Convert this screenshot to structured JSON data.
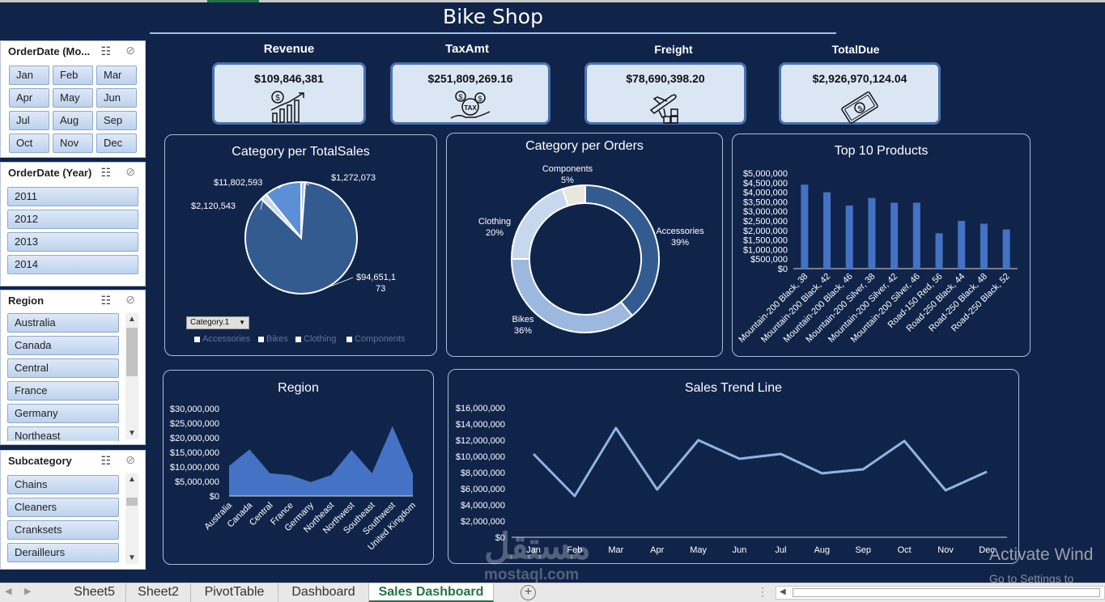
{
  "dashboard": {
    "title": "Bike Shop"
  },
  "slicers": {
    "month": {
      "title": "OrderDate (Mo...",
      "items": [
        "Jan",
        "Feb",
        "Mar",
        "Apr",
        "May",
        "Jun",
        "Jul",
        "Aug",
        "Sep",
        "Oct",
        "Nov",
        "Dec"
      ]
    },
    "year": {
      "title": "OrderDate (Year)",
      "items": [
        "2011",
        "2012",
        "2013",
        "2014"
      ]
    },
    "region": {
      "title": "Region",
      "items": [
        "Australia",
        "Canada",
        "Central",
        "France",
        "Germany",
        "Northeast"
      ]
    },
    "subcategory": {
      "title": "Subcategory",
      "items": [
        "Chains",
        "Cleaners",
        "Cranksets",
        "Derailleurs"
      ]
    }
  },
  "kpis": [
    {
      "label": "Revenue",
      "value": "$109,846,381",
      "icon": "revenue-chart-icon"
    },
    {
      "label": "TaxAmt",
      "value": "$251,809,269.16",
      "icon": "tax-coins-icon"
    },
    {
      "label": "Freight",
      "value": "$78,690,398.20",
      "icon": "freight-plane-icon"
    },
    {
      "label": "TotalDue",
      "value": "$2,926,970,124.04",
      "icon": "cash-bill-icon"
    }
  ],
  "colors": {
    "background": "#10244a",
    "accent": "#4472c4",
    "accent_dark": "#335b90",
    "accent_mid": "#5b8fd6",
    "accent_light": "#a9c1e3",
    "line": "#8eb4e3"
  },
  "chart_data": [
    {
      "id": "category-totalsales",
      "type": "pie",
      "title": "Category per TotalSales",
      "slices": [
        {
          "name": "Accessories",
          "value": 1272073,
          "label": "$1,272,073"
        },
        {
          "name": "Bikes",
          "value": 94651173,
          "label": "$94,651,173"
        },
        {
          "name": "Clothing",
          "value": 2120543,
          "label": "$2,120,543"
        },
        {
          "name": "Components",
          "value": 11802593,
          "label": "$11,802,593"
        }
      ],
      "legend": [
        "Accessories",
        "Bikes",
        "Clothing",
        "Components"
      ],
      "filter_label": "Category.1",
      "legend_position": "bottom"
    },
    {
      "id": "category-orders",
      "type": "pie",
      "subtype": "doughnut",
      "title": "Category per Orders",
      "slices": [
        {
          "name": "Accessories",
          "value": 39,
          "label": "39%"
        },
        {
          "name": "Bikes",
          "value": 36,
          "label": "36%"
        },
        {
          "name": "Clothing",
          "value": 20,
          "label": "20%"
        },
        {
          "name": "Components",
          "value": 5,
          "label": "5%"
        }
      ]
    },
    {
      "id": "top-10-products",
      "type": "bar",
      "title": "Top 10 Products",
      "categories": [
        "Mountain-200 Black, 38",
        "Mountain-200 Black, 42",
        "Mountain-200 Black, 46",
        "Mountain-200 Silver, 38",
        "Mountain-200 Silver, 42",
        "Mountain-200 Silver, 46",
        "Road-150 Red, 56",
        "Road-250 Black, 44",
        "Road-250 Black, 48",
        "Road-250 Black, 52"
      ],
      "values": [
        4400000,
        4000000,
        3300000,
        3700000,
        3450000,
        3450000,
        1850000,
        2500000,
        2350000,
        2050000
      ],
      "yticks": [
        "$0",
        "$500,000",
        "$1,000,000",
        "$1,500,000",
        "$2,000,000",
        "$2,500,000",
        "$3,000,000",
        "$3,500,000",
        "$4,000,000",
        "$4,500,000",
        "$5,000,000"
      ],
      "ylim": [
        0,
        5000000
      ]
    },
    {
      "id": "region",
      "type": "area",
      "title": "Region",
      "categories": [
        "Australia",
        "Canada",
        "Central",
        "France",
        "Germany",
        "Northeast",
        "Northwest",
        "Southeast",
        "Southwest",
        "United Kingdom"
      ],
      "values": [
        10300000,
        16000000,
        7800000,
        7200000,
        4800000,
        7200000,
        15800000,
        7800000,
        24000000,
        7600000
      ],
      "yticks": [
        "$0",
        "$5,000,000",
        "$10,000,000",
        "$15,000,000",
        "$20,000,000",
        "$25,000,000",
        "$30,000,000"
      ],
      "ylim": [
        0,
        30000000
      ]
    },
    {
      "id": "sales-trend",
      "type": "line",
      "title": "Sales Trend Line",
      "categories": [
        "Jan",
        "Feb",
        "Mar",
        "Apr",
        "May",
        "Jun",
        "Jul",
        "Aug",
        "Sep",
        "Oct",
        "Nov",
        "Dec"
      ],
      "values": [
        10300000,
        5100000,
        13500000,
        5900000,
        12000000,
        9700000,
        10300000,
        7900000,
        8400000,
        11900000,
        5800000,
        8100000
      ],
      "yticks": [
        "$0",
        "$2,000,000",
        "$4,000,000",
        "$6,000,000",
        "$8,000,000",
        "$10,000,000",
        "$12,000,000",
        "$14,000,000",
        "$16,000,000"
      ],
      "ylim": [
        0,
        16000000
      ]
    }
  ],
  "sheet_tabs": {
    "items": [
      "Sheet5",
      "Sheet2",
      "PivotTable",
      "Dashboard",
      "Sales Dashboard"
    ],
    "active": "Sales Dashboard"
  },
  "overlay": {
    "activate_title": "Activate Wind",
    "activate_sub": "Go to Settings to",
    "watermark": "مستقل",
    "watermark_sub": "mostaql.com"
  }
}
